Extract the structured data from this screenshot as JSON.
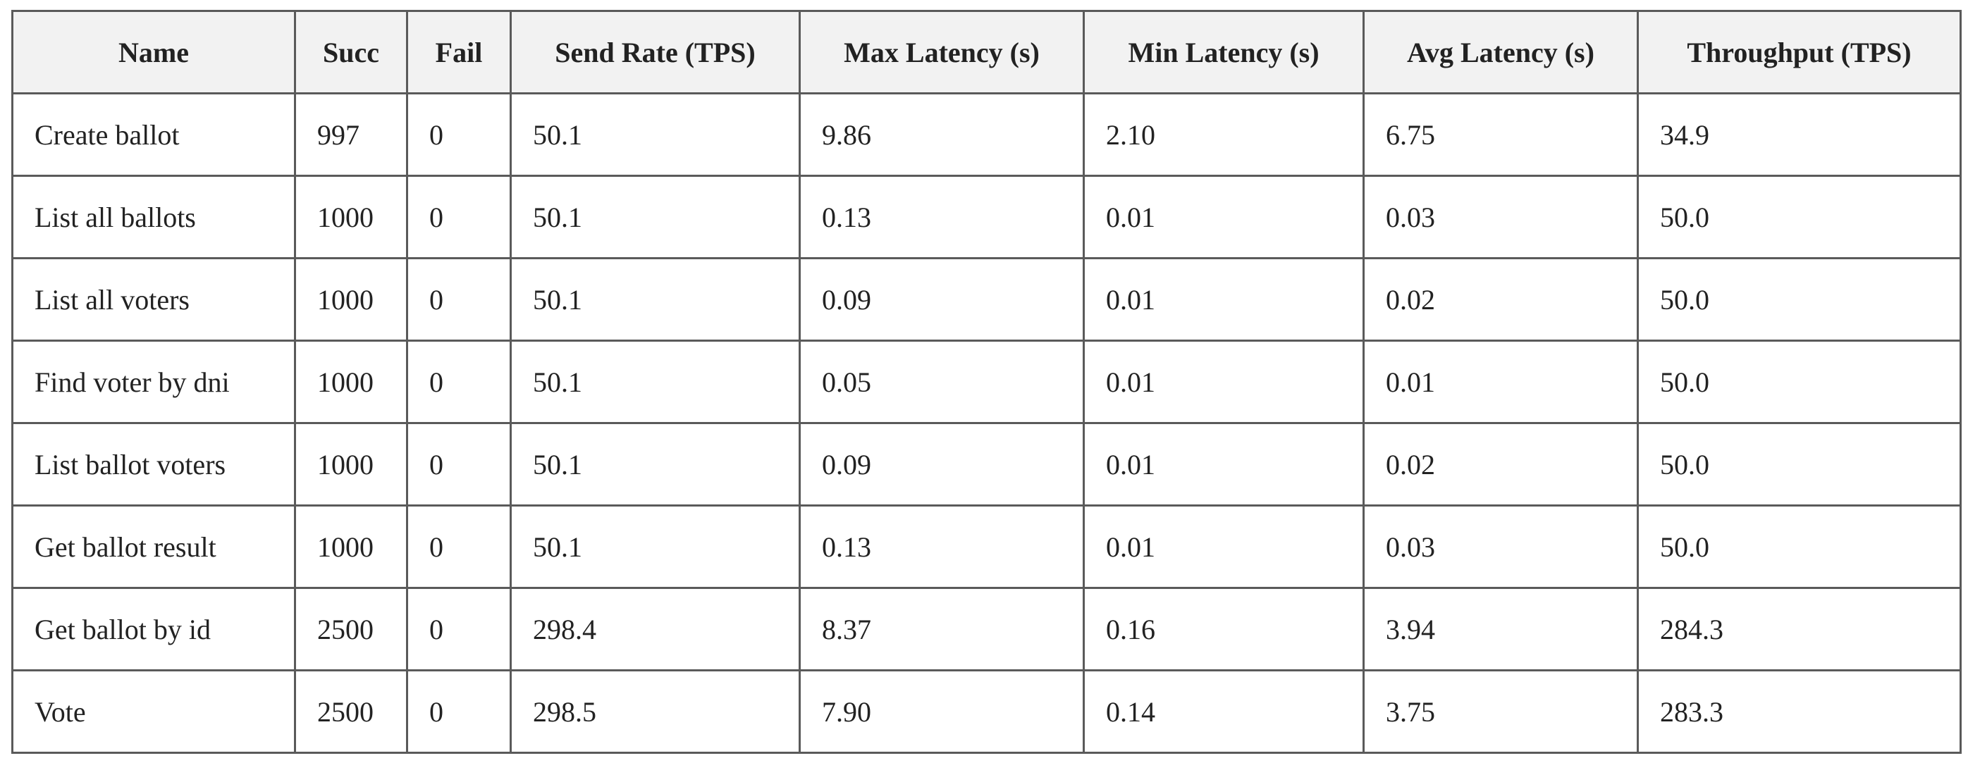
{
  "table": {
    "header": [
      "Name",
      "Succ",
      "Fail",
      "Send Rate (TPS)",
      "Max Latency (s)",
      "Min Latency (s)",
      "Avg Latency (s)",
      "Throughput (TPS)"
    ],
    "rows": [
      [
        "Create ballot",
        "997",
        "0",
        "50.1",
        "9.86",
        "2.10",
        "6.75",
        "34.9"
      ],
      [
        "List all ballots",
        "1000",
        "0",
        "50.1",
        "0.13",
        "0.01",
        "0.03",
        "50.0"
      ],
      [
        "List all voters",
        "1000",
        "0",
        "50.1",
        "0.09",
        "0.01",
        "0.02",
        "50.0"
      ],
      [
        "Find voter by dni",
        "1000",
        "0",
        "50.1",
        "0.05",
        "0.01",
        "0.01",
        "50.0"
      ],
      [
        "List ballot voters",
        "1000",
        "0",
        "50.1",
        "0.09",
        "0.01",
        "0.02",
        "50.0"
      ],
      [
        "Get ballot result",
        "1000",
        "0",
        "50.1",
        "0.13",
        "0.01",
        "0.03",
        "50.0"
      ],
      [
        "Get ballot by id",
        "2500",
        "0",
        "298.4",
        "8.37",
        "0.16",
        "3.94",
        "284.3"
      ],
      [
        "Vote",
        "2500",
        "0",
        "298.5",
        "7.90",
        "0.14",
        "3.75",
        "283.3"
      ]
    ]
  }
}
